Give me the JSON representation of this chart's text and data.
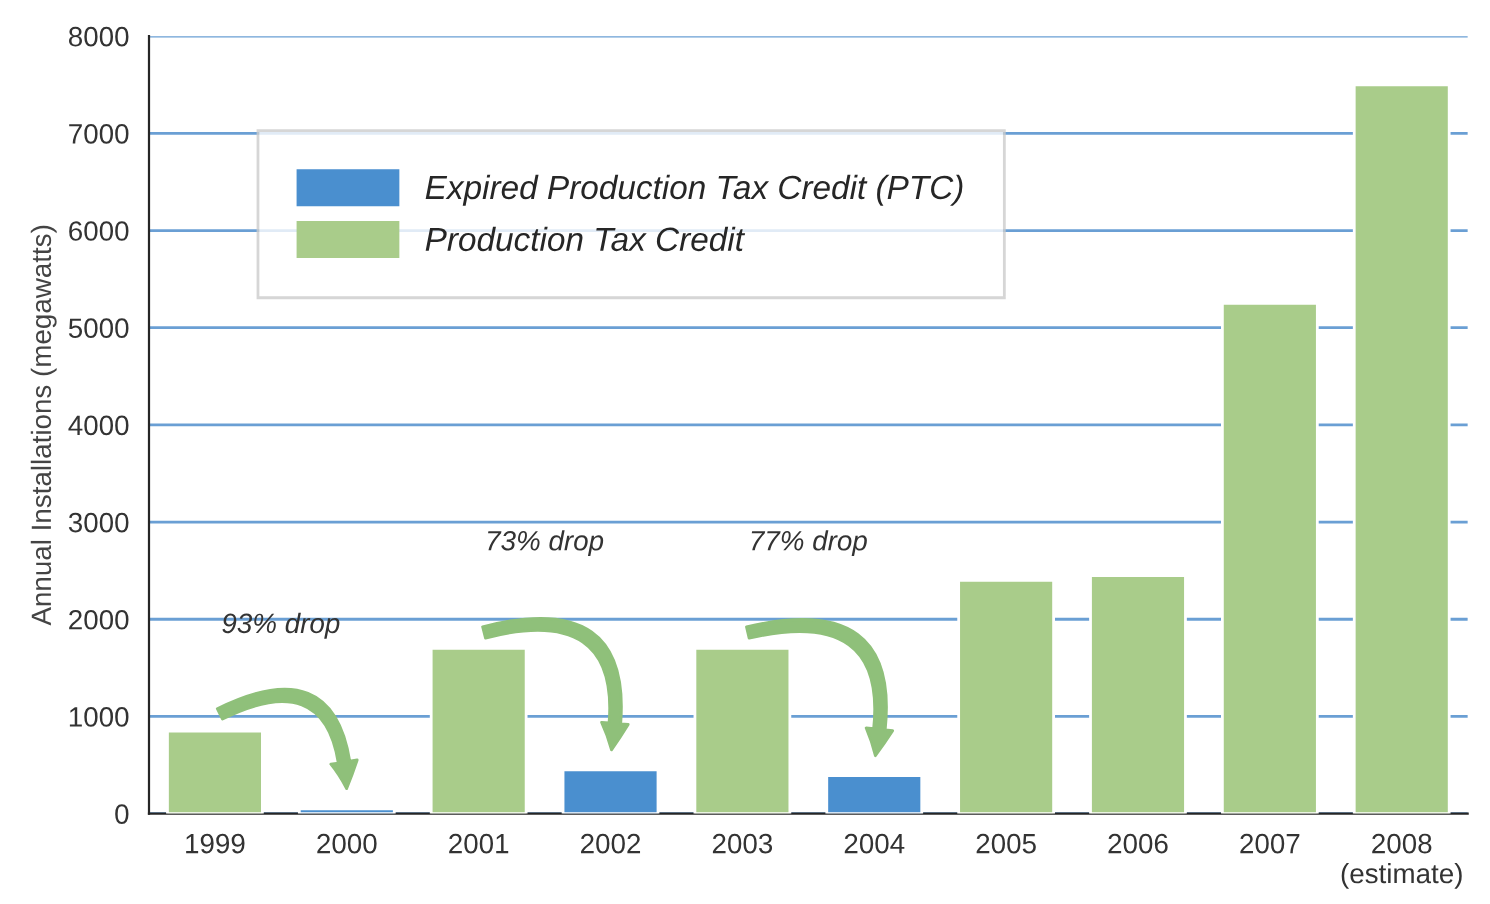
{
  "chart_data": {
    "type": "bar",
    "categories": [
      "1999",
      "2000",
      "2001",
      "2002",
      "2003",
      "2004",
      "2005",
      "2006",
      "2007",
      "2008\n(estimate)"
    ],
    "series": [
      {
        "name": "Expired Production Tax Credit (PTC)",
        "color": "#4a8fcf",
        "values": [
          null,
          50,
          null,
          450,
          null,
          390,
          null,
          null,
          null,
          null
        ]
      },
      {
        "name": "Production Tax Credit",
        "color": "#a9cc8a",
        "values": [
          850,
          null,
          1700,
          null,
          1700,
          null,
          2400,
          2450,
          5250,
          7500
        ]
      }
    ],
    "ylabel": "Annual Installations (megawatts)",
    "ylim": [
      0,
      8000
    ],
    "yticks": [
      0,
      1000,
      2000,
      3000,
      4000,
      5000,
      6000,
      7000,
      8000
    ],
    "annotations": [
      "93% drop",
      "73% drop",
      "77% drop"
    ],
    "grid": "y",
    "legend": "top left"
  }
}
